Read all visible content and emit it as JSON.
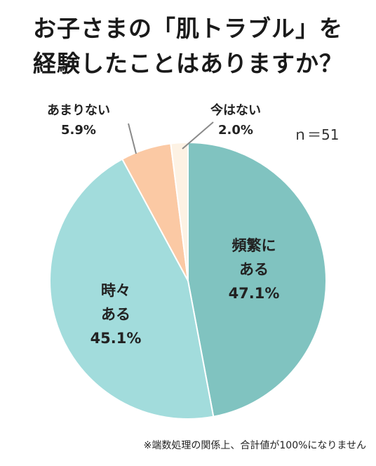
{
  "title": {
    "line1": "お子さまの「肌トラブル」を",
    "line2": "経験したことはありますか？"
  },
  "sample_size": "ｎ＝51",
  "footnote": "※端数処理の関係上、合計値が100%になりません",
  "chart_data": {
    "type": "pie",
    "slices": [
      {
        "label_lines": [
          "頻繁に",
          "ある"
        ],
        "value": 47.1,
        "value_text": "47.1%",
        "color": "#80c3c0"
      },
      {
        "label_lines": [
          "時々",
          "ある"
        ],
        "value": 45.1,
        "value_text": "45.1%",
        "color": "#a2dcdc"
      },
      {
        "label_lines": [
          "あまりない"
        ],
        "value": 5.9,
        "value_text": "5.9%",
        "color": "#fbc9a4"
      },
      {
        "label_lines": [
          "今はない"
        ],
        "value": 2.0,
        "value_text": "2.0%",
        "color": "#fdf2e4"
      }
    ]
  }
}
